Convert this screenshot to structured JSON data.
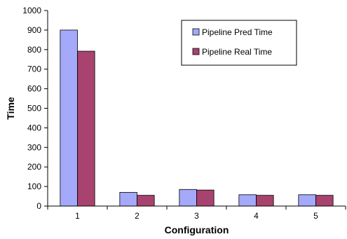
{
  "chart_data": {
    "type": "bar",
    "title": "",
    "xlabel": "Configuration",
    "ylabel": "Time",
    "categories": [
      "1",
      "2",
      "3",
      "4",
      "5"
    ],
    "series": [
      {
        "name": "Pipeline Pred Time",
        "values": [
          900,
          70,
          85,
          58,
          58
        ],
        "color": "#a4a9f9"
      },
      {
        "name": "Pipeline Real Time",
        "values": [
          792,
          55,
          82,
          55,
          55
        ],
        "color": "#a8426e"
      }
    ],
    "ylim": [
      0,
      1000
    ],
    "yticks": [
      "0",
      "100",
      "200",
      "300",
      "400",
      "500",
      "600",
      "700",
      "800",
      "900",
      "1000"
    ],
    "grid": false,
    "legend_position": "top-right"
  }
}
